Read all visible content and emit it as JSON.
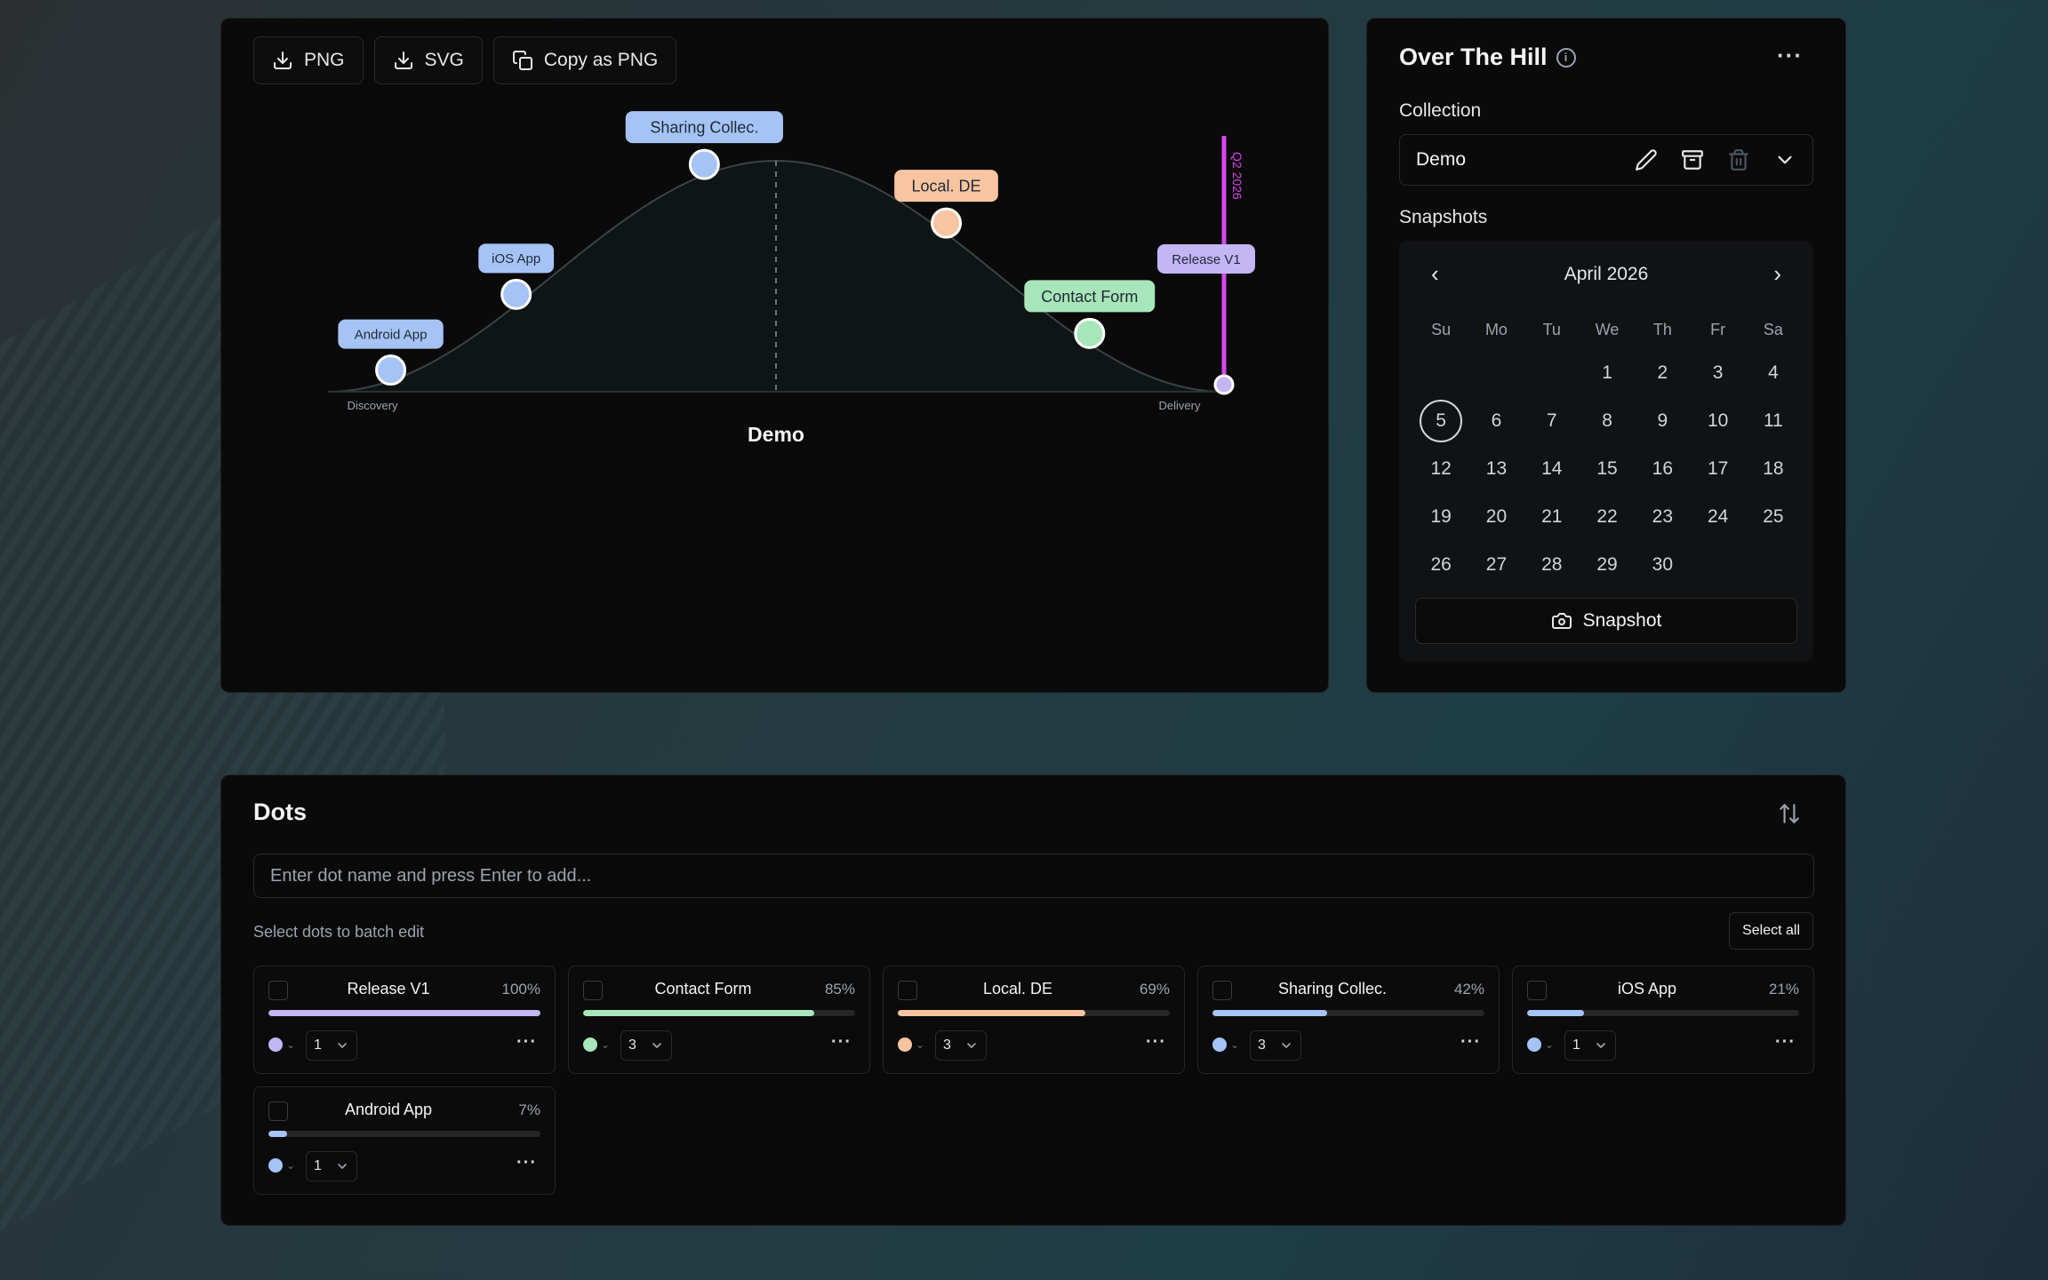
{
  "toolbar": {
    "png": "PNG",
    "svg": "SVG",
    "copy": "Copy as PNG"
  },
  "chart": {
    "title": "Demo",
    "left_label": "Discovery",
    "right_label": "Delivery",
    "marker_label": "Q2 2026",
    "marker_color": "#d946ef"
  },
  "chart_data": {
    "type": "line",
    "title": "Demo",
    "xlabel": "",
    "ylabel": "",
    "x_axis_labels": [
      "Discovery",
      "Delivery"
    ],
    "series": [
      {
        "points": [
          {
            "label": "Android App",
            "progress": 7,
            "color": "#a5c4f5"
          },
          {
            "label": "iOS App",
            "progress": 21,
            "color": "#a5c4f5"
          },
          {
            "label": "Sharing Collec.",
            "progress": 42,
            "color": "#a5c4f5"
          },
          {
            "label": "Local. DE",
            "progress": 69,
            "color": "#f9c4a0"
          },
          {
            "label": "Contact Form",
            "progress": 85,
            "color": "#a7e6b8"
          },
          {
            "label": "Release V1",
            "progress": 100,
            "color": "#c4b5f5"
          }
        ]
      }
    ],
    "annotations": [
      "Q2 2026"
    ],
    "xlim": [
      0,
      100
    ]
  },
  "side": {
    "title": "Over The Hill",
    "collection_label": "Collection",
    "collection_value": "Demo",
    "snapshots_label": "Snapshots",
    "calendar": {
      "month": "April 2026",
      "dow": [
        "Su",
        "Mo",
        "Tu",
        "We",
        "Th",
        "Fr",
        "Sa"
      ],
      "first_weekday": 3,
      "days_in_month": 30,
      "today": 5
    },
    "snapshot_button": "Snapshot"
  },
  "dots": {
    "title": "Dots",
    "input_placeholder": "Enter dot name and press Enter to add...",
    "batch_label": "Select dots to batch edit",
    "select_all": "Select all",
    "items": [
      {
        "name": "Release V1",
        "pct": "100%",
        "progress": 100,
        "color": "#c4b5f5",
        "size": "1"
      },
      {
        "name": "Contact Form",
        "pct": "85%",
        "progress": 85,
        "color": "#a7e6b8",
        "size": "3"
      },
      {
        "name": "Local. DE",
        "pct": "69%",
        "progress": 69,
        "color": "#f9c4a0",
        "size": "3"
      },
      {
        "name": "Sharing Collec.",
        "pct": "42%",
        "progress": 42,
        "color": "#a5c4f5",
        "size": "3"
      },
      {
        "name": "iOS App",
        "pct": "21%",
        "progress": 21,
        "color": "#a5c4f5",
        "size": "1"
      },
      {
        "name": "Android App",
        "pct": "7%",
        "progress": 7,
        "color": "#a5c4f5",
        "size": "1"
      }
    ]
  }
}
